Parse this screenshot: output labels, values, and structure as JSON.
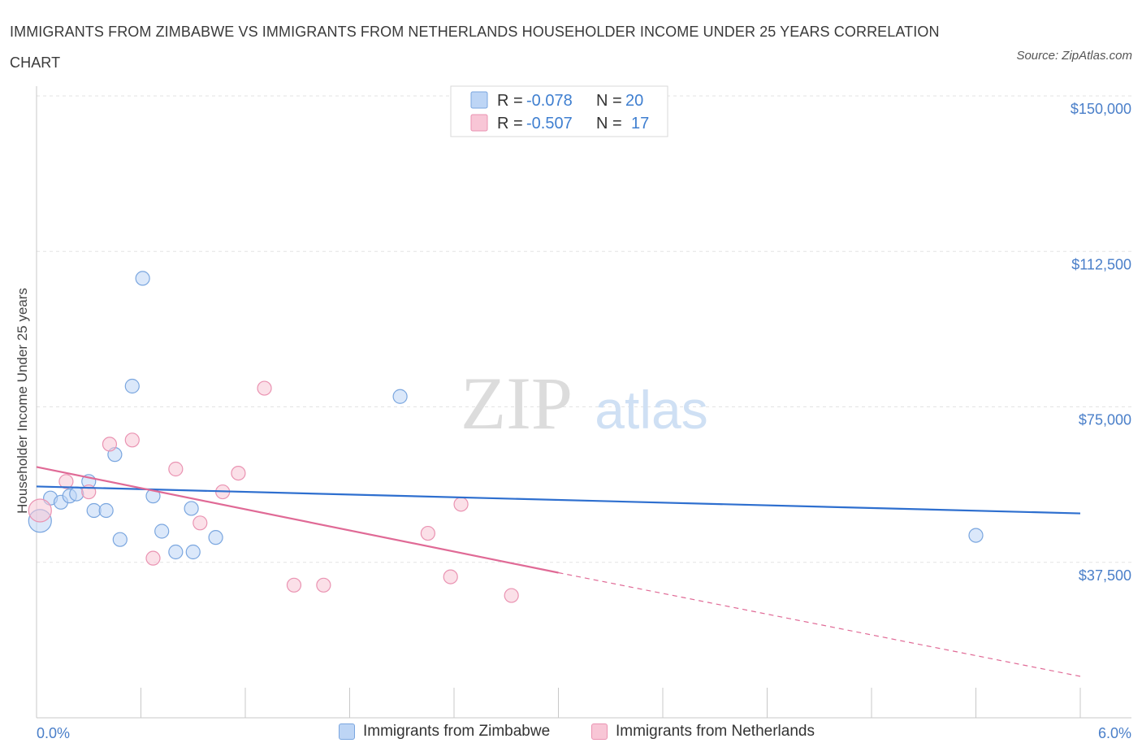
{
  "title": "IMMIGRANTS FROM ZIMBABWE VS IMMIGRANTS FROM NETHERLANDS HOUSEHOLDER INCOME UNDER 25 YEARS CORRELATION CHART",
  "source": "Source: ZipAtlas.com",
  "watermark": {
    "zip": "ZIP",
    "atlas": "atlas"
  },
  "colors": {
    "zimbabwe_fill": "#bdd5f5",
    "zimbabwe_stroke": "#7aa6df",
    "zimbabwe_line": "#2e6fcf",
    "netherlands_fill": "#f8c6d6",
    "netherlands_stroke": "#ea93b2",
    "netherlands_line": "#e06a96",
    "axis_tick": "#3f7fd0"
  },
  "legend": {
    "rows": [
      {
        "r_label": "R =",
        "r_value": "-0.078",
        "n_label": "N =",
        "n_value": "20"
      },
      {
        "r_label": "R =",
        "r_value": "-0.507",
        "n_label": "N =",
        "n_value": "17"
      }
    ]
  },
  "bottom_legend": [
    "Immigrants from Zimbabwe",
    "Immigrants from Netherlands"
  ],
  "chart_data": {
    "type": "scatter",
    "title": "IMMIGRANTS FROM ZIMBABWE VS IMMIGRANTS FROM NETHERLANDS HOUSEHOLDER INCOME UNDER 25 YEARS CORRELATION CHART",
    "xlabel": "",
    "ylabel": "Householder Income Under 25 years",
    "xlim": [
      0,
      6
    ],
    "ylim": [
      0,
      150000
    ],
    "x_tick_labels": [
      "0.0%",
      "6.0%"
    ],
    "y_ticks": [
      {
        "value": 37500,
        "label": "$37,500"
      },
      {
        "value": 75000,
        "label": "$75,000"
      },
      {
        "value": 112500,
        "label": "$112,500"
      },
      {
        "value": 150000,
        "label": "$150,000"
      }
    ],
    "grid": true,
    "series": [
      {
        "name": "Immigrants from Zimbabwe",
        "r": -0.078,
        "n": 20,
        "points": [
          {
            "x": 0.02,
            "y": 47500,
            "large": true
          },
          {
            "x": 0.08,
            "y": 53000
          },
          {
            "x": 0.14,
            "y": 52000
          },
          {
            "x": 0.19,
            "y": 53500
          },
          {
            "x": 0.23,
            "y": 54000
          },
          {
            "x": 0.3,
            "y": 57000
          },
          {
            "x": 0.33,
            "y": 50000
          },
          {
            "x": 0.4,
            "y": 50000
          },
          {
            "x": 0.45,
            "y": 63500
          },
          {
            "x": 0.48,
            "y": 43000
          },
          {
            "x": 0.55,
            "y": 80000
          },
          {
            "x": 0.61,
            "y": 106000
          },
          {
            "x": 0.67,
            "y": 53500
          },
          {
            "x": 0.72,
            "y": 45000
          },
          {
            "x": 0.8,
            "y": 40000
          },
          {
            "x": 0.89,
            "y": 50500
          },
          {
            "x": 0.9,
            "y": 40000
          },
          {
            "x": 1.03,
            "y": 43500
          },
          {
            "x": 2.09,
            "y": 77500
          },
          {
            "x": 5.4,
            "y": 44000
          }
        ],
        "trend": {
          "x": [
            0,
            6
          ],
          "y": [
            55800,
            49300
          ]
        }
      },
      {
        "name": "Immigrants from Netherlands",
        "r": -0.507,
        "n": 17,
        "points": [
          {
            "x": 0.02,
            "y": 50000,
            "large": true
          },
          {
            "x": 0.17,
            "y": 57000
          },
          {
            "x": 0.3,
            "y": 54500
          },
          {
            "x": 0.42,
            "y": 66000
          },
          {
            "x": 0.55,
            "y": 67000
          },
          {
            "x": 0.67,
            "y": 38500
          },
          {
            "x": 0.8,
            "y": 60000
          },
          {
            "x": 0.94,
            "y": 47000
          },
          {
            "x": 1.07,
            "y": 54500
          },
          {
            "x": 1.16,
            "y": 59000
          },
          {
            "x": 1.31,
            "y": 79500
          },
          {
            "x": 1.48,
            "y": 32000
          },
          {
            "x": 1.65,
            "y": 32000
          },
          {
            "x": 2.25,
            "y": 44500
          },
          {
            "x": 2.38,
            "y": 34000
          },
          {
            "x": 2.44,
            "y": 51500
          },
          {
            "x": 2.73,
            "y": 29500
          }
        ],
        "trend": {
          "x": [
            0,
            3.0
          ],
          "y": [
            60500,
            35000
          ]
        },
        "trend_extrapolated": {
          "x": [
            3.0,
            6
          ],
          "y": [
            35000,
            10000
          ]
        }
      }
    ]
  }
}
